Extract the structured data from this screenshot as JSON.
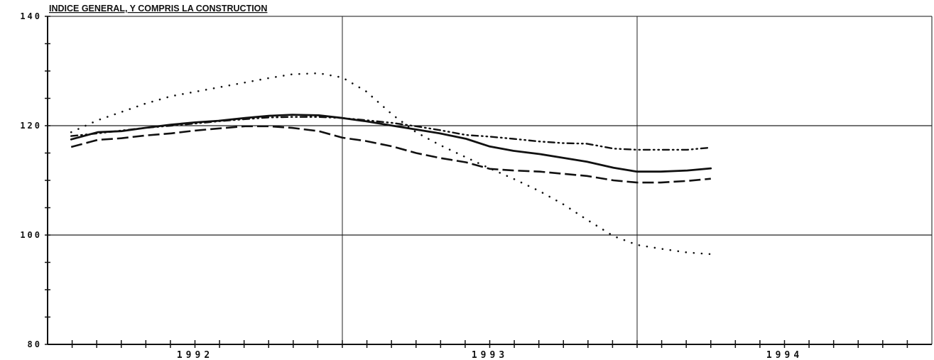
{
  "chart_data": {
    "type": "line",
    "title": "INDICE GENERAL, Y COMPRIS LA CONSTRUCTION",
    "xlabel": "",
    "ylabel": "",
    "ylim": [
      80,
      140
    ],
    "xlim": [
      1991.5,
      1994.5
    ],
    "y_ticks": [
      80,
      100,
      120,
      140
    ],
    "y_tick_labels": [
      "80",
      "100",
      "120",
      "140"
    ],
    "x_tick_labels": [
      {
        "label": "1992",
        "at": 1992.0
      },
      {
        "label": "1993",
        "at": 1993.0
      },
      {
        "label": "1994",
        "at": 1994.0
      }
    ],
    "grid": {
      "horizontal": [
        100,
        120
      ],
      "vertical": [
        1992.5,
        1993.5
      ]
    },
    "legend": "none",
    "series": [
      {
        "style": "solid",
        "x": [
          1991.58,
          1991.67,
          1991.75,
          1991.83,
          1991.92,
          1992.0,
          1992.08,
          1992.17,
          1992.25,
          1992.33,
          1992.42,
          1992.5,
          1992.58,
          1992.67,
          1992.75,
          1992.83,
          1992.92,
          1993.0,
          1993.08,
          1993.17,
          1993.25,
          1993.33,
          1993.42,
          1993.5,
          1993.58,
          1993.67,
          1993.75
        ],
        "y": [
          117.5,
          118.8,
          119.0,
          119.6,
          120.2,
          120.6,
          120.9,
          121.4,
          121.8,
          122.0,
          121.9,
          121.4,
          120.8,
          120.0,
          119.3,
          118.6,
          117.6,
          116.2,
          115.4,
          114.8,
          114.1,
          113.4,
          112.3,
          111.6,
          111.6,
          111.8,
          112.2
        ]
      },
      {
        "style": "dashed",
        "x": [
          1991.58,
          1991.67,
          1991.75,
          1991.83,
          1991.92,
          1992.0,
          1992.08,
          1992.17,
          1992.25,
          1992.33,
          1992.42,
          1992.5,
          1992.58,
          1992.67,
          1992.75,
          1992.83,
          1992.92,
          1993.0,
          1993.08,
          1993.17,
          1993.25,
          1993.33,
          1993.42,
          1993.5,
          1993.58,
          1993.67,
          1993.75
        ],
        "y": [
          116.1,
          117.4,
          117.7,
          118.2,
          118.6,
          119.1,
          119.5,
          119.9,
          119.9,
          119.6,
          119.0,
          117.8,
          117.2,
          116.2,
          115.0,
          114.1,
          113.3,
          112.1,
          111.8,
          111.6,
          111.2,
          110.8,
          110.0,
          109.6,
          109.6,
          109.9,
          110.3
        ]
      },
      {
        "style": "dash-dot",
        "x": [
          1991.58,
          1991.67,
          1991.75,
          1991.83,
          1991.92,
          1992.0,
          1992.08,
          1992.17,
          1992.25,
          1992.33,
          1992.42,
          1992.5,
          1992.58,
          1992.67,
          1992.75,
          1992.83,
          1992.92,
          1993.0,
          1993.08,
          1993.17,
          1993.25,
          1993.33,
          1993.42,
          1993.5,
          1993.58,
          1993.67,
          1993.75
        ],
        "y": [
          118.1,
          118.6,
          119.1,
          119.6,
          120.0,
          120.4,
          120.8,
          121.2,
          121.5,
          121.6,
          121.6,
          121.4,
          121.0,
          120.5,
          119.9,
          119.2,
          118.3,
          118.0,
          117.6,
          117.1,
          116.8,
          116.7,
          115.8,
          115.6,
          115.6,
          115.6,
          116.0
        ]
      },
      {
        "style": "dotted",
        "x": [
          1991.58,
          1991.67,
          1991.75,
          1991.83,
          1991.92,
          1992.0,
          1992.08,
          1992.17,
          1992.25,
          1992.33,
          1992.42,
          1992.5,
          1992.58,
          1992.67,
          1992.75,
          1992.83,
          1992.92,
          1993.0,
          1993.08,
          1993.17,
          1993.25,
          1993.33,
          1993.42,
          1993.5,
          1993.58,
          1993.67,
          1993.75
        ],
        "y": [
          118.8,
          121.0,
          122.5,
          124.0,
          125.4,
          126.2,
          127.0,
          127.9,
          128.7,
          129.4,
          129.6,
          128.8,
          126.3,
          122.0,
          118.8,
          116.5,
          114.2,
          112.2,
          110.3,
          108.0,
          105.6,
          102.8,
          99.8,
          98.2,
          97.5,
          96.8,
          96.5
        ]
      }
    ]
  }
}
